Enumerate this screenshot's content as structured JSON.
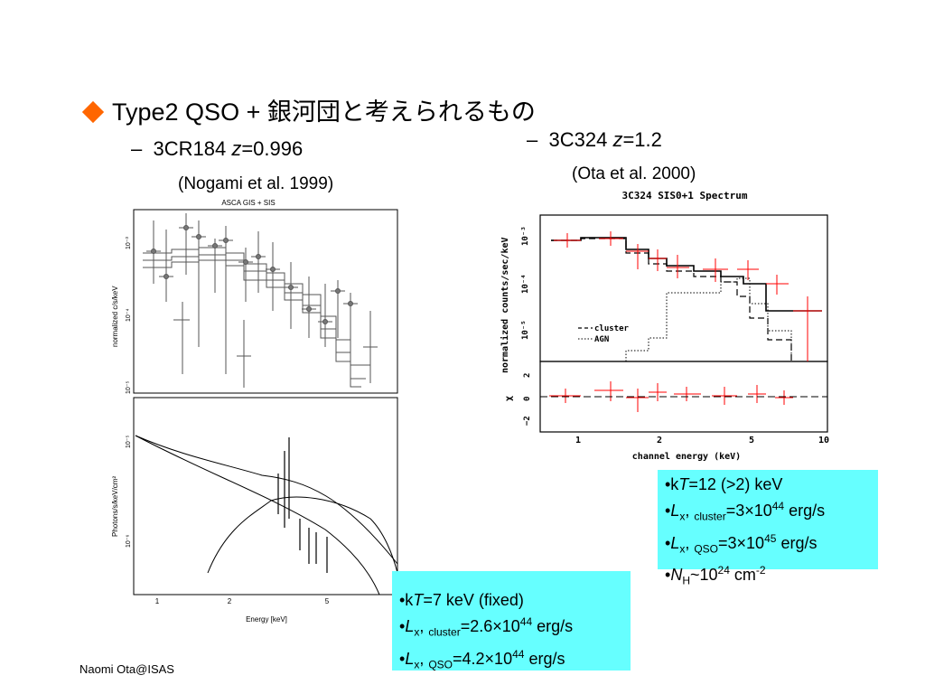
{
  "title": {
    "text": "Type2 QSO + 銀河団と考えられるもの"
  },
  "left": {
    "name": "3CR184",
    "z_label": "z",
    "z_value": "=0.996",
    "reference": "(Nogami et al. 1999)",
    "top_plot": {
      "title": "ASCA GIS + SIS",
      "ylabel": "normalized c/s/keV",
      "yticks": [
        "10⁻³",
        "10⁻⁴",
        "10⁻⁵"
      ]
    },
    "bottom_plot": {
      "ylabel": "Photons/s/keV/cm²",
      "yticks": [
        "10⁻⁵",
        "10⁻⁶"
      ],
      "xticks": [
        "1",
        "2",
        "5"
      ],
      "xlabel": "Energy [keV]"
    },
    "params": {
      "kT_prefix": "•k",
      "kT_var": "T",
      "kT_text": "=7 keV (fixed)",
      "lc_prefix": "•",
      "lc_var": "L",
      "lc_sub": "x",
      "lc_sep": ", ",
      "lc_sub2": "cluster",
      "lc_val": "=2.6×10",
      "lc_exp": "44",
      "lc_unit": " erg/s",
      "lq_prefix": "•",
      "lq_var": "L",
      "lq_sub": "x",
      "lq_sep": ", ",
      "lq_sub2": "QSO",
      "lq_val": "=4.2×10",
      "lq_exp": "44",
      "lq_unit": " erg/s"
    }
  },
  "right": {
    "name": "3C324",
    "z_label": "z",
    "z_value": "=1.2",
    "reference": "(Ota et al. 2000)",
    "plot": {
      "title": "3C324 SIS0+1 Spectrum",
      "ylabel": "normalized counts/sec/keV",
      "resid_label": "χ",
      "yticks": [
        "10⁻³",
        "10⁻⁴",
        "10⁻⁵"
      ],
      "resid_ticks": [
        "2",
        "0",
        "−2"
      ],
      "xticks": [
        "1",
        "2",
        "5",
        "10"
      ],
      "xlabel": "channel energy (keV)",
      "legend": [
        "cluster",
        "AGN"
      ]
    },
    "params": {
      "kT_prefix": "•k",
      "kT_var": "T",
      "kT_text": "=12 (>2) keV",
      "lc_prefix": "•",
      "lc_var": "L",
      "lc_sub": "x",
      "lc_sep": ", ",
      "lc_sub2": "cluster",
      "lc_val": "=3×10",
      "lc_exp": "44",
      "lc_unit": " erg/s",
      "lq_prefix": "•",
      "lq_var": "L",
      "lq_sub": "x",
      "lq_sep": ", ",
      "lq_sub2": "QSO",
      "lq_val": "=3×10",
      "lq_exp": "45",
      "lq_unit": " erg/s",
      "nh_prefix": "•",
      "nh_var": "N",
      "nh_sub": "H",
      "nh_val": "~10",
      "nh_exp": "24",
      "nh_unit": " cm",
      "nh_exp2": "-2"
    }
  },
  "footer": {
    "text": "Naomi Ota@ISAS"
  },
  "colors": {
    "bullet": "#ff6600",
    "box": "#66ffff",
    "spectrum_red": "#ff0000"
  }
}
